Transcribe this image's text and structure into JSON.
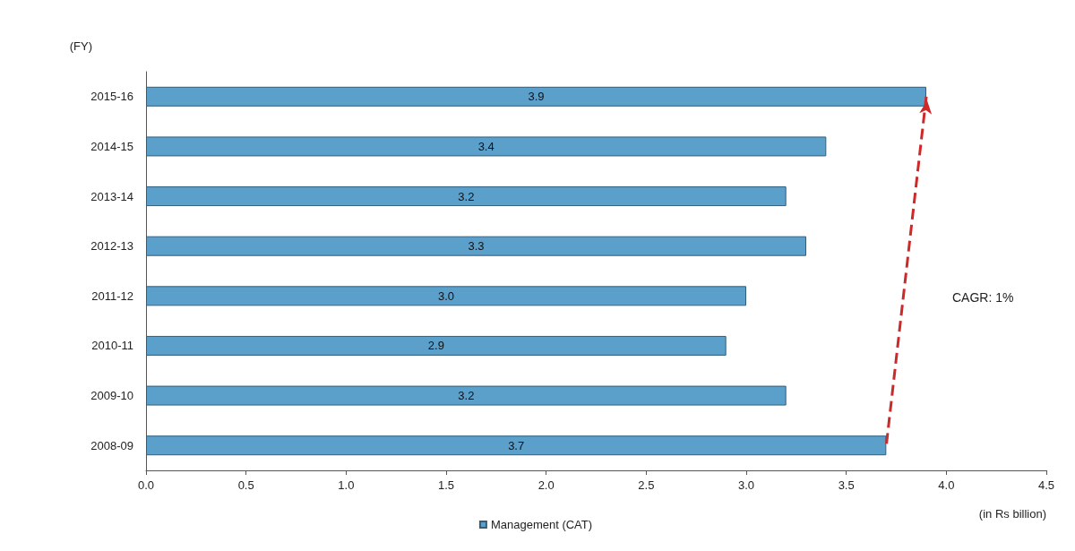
{
  "chart_data": {
    "type": "bar",
    "orientation": "horizontal",
    "ylabel": "(FY)",
    "xlabel": "(in Rs billion)",
    "categories": [
      "2015-16",
      "2014-15",
      "2013-14",
      "2012-13",
      "2011-12",
      "2010-11",
      "2009-10",
      "2008-09"
    ],
    "series": [
      {
        "name": "Management (CAT)",
        "color": "#5b9fcb",
        "values": [
          3.9,
          3.4,
          3.2,
          3.3,
          3.0,
          2.9,
          3.2,
          3.7
        ],
        "value_labels": [
          "3.9",
          "3.4",
          "3.2",
          "3.3",
          "3.0",
          "2.9",
          "3.2",
          "3.7"
        ]
      },
      {
        "type": "line",
        "color": "#cc2a2a",
        "line_style": "dashed",
        "values": [
          3.9,
          null,
          null,
          null,
          null,
          null,
          null,
          3.7
        ]
      }
    ],
    "marker": "none",
    "xlim": [
      0,
      4.5
    ],
    "xticks": [
      {
        "value": 0,
        "label": "0.0"
      },
      {
        "value": 0.5,
        "label": "0.5"
      },
      {
        "value": 1,
        "label": "1.0"
      },
      {
        "value": 1.5,
        "label": "1.5"
      },
      {
        "value": 2,
        "label": "2.0"
      },
      {
        "value": 2.5,
        "label": "2.5"
      },
      {
        "value": 3,
        "label": "3.0"
      },
      {
        "value": 3.5,
        "label": "3.5"
      },
      {
        "value": 4,
        "label": "4.0"
      },
      {
        "value": 4.5,
        "label": "4.5"
      }
    ],
    "legend": "bottom",
    "grid": false,
    "annotations": [
      "CAGR: 1%"
    ]
  }
}
